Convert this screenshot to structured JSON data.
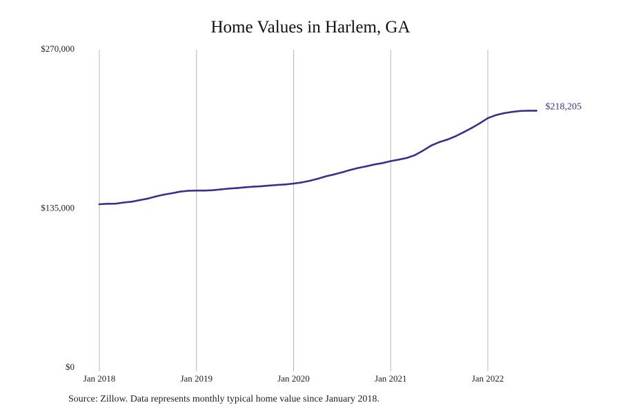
{
  "title": "Home Values in Harlem, GA",
  "source": "Source: Zillow. Data represents monthly typical home value since January 2018.",
  "colors": {
    "line": "#3a2f8a",
    "grid": "#b5b5b5",
    "text": "#222222"
  },
  "chart_data": {
    "type": "line",
    "title": "Home Values in Harlem, GA",
    "xlabel": "",
    "ylabel": "",
    "grid": "vertical",
    "legend": "none",
    "ylim": [
      0,
      270000
    ],
    "y_ticks": [
      {
        "value": 0,
        "label": "$0"
      },
      {
        "value": 135000,
        "label": "$135,000"
      },
      {
        "value": 270000,
        "label": "$270,000"
      }
    ],
    "x_ticks": [
      {
        "value": "2018-01",
        "label": "Jan 2018"
      },
      {
        "value": "2019-01",
        "label": "Jan 2019"
      },
      {
        "value": "2020-01",
        "label": "Jan 2020"
      },
      {
        "value": "2021-01",
        "label": "Jan 2021"
      },
      {
        "value": "2022-01",
        "label": "Jan 2022"
      }
    ],
    "end_label": "$218,205",
    "series": [
      {
        "x": [
          "2018-01",
          "2018-02",
          "2018-03",
          "2018-04",
          "2018-05",
          "2018-06",
          "2018-07",
          "2018-08",
          "2018-09",
          "2018-10",
          "2018-11",
          "2018-12",
          "2019-01",
          "2019-02",
          "2019-03",
          "2019-04",
          "2019-05",
          "2019-06",
          "2019-07",
          "2019-08",
          "2019-09",
          "2019-10",
          "2019-11",
          "2019-12",
          "2020-01",
          "2020-02",
          "2020-03",
          "2020-04",
          "2020-05",
          "2020-06",
          "2020-07",
          "2020-08",
          "2020-09",
          "2020-10",
          "2020-11",
          "2020-12",
          "2021-01",
          "2021-02",
          "2021-03",
          "2021-04",
          "2021-05",
          "2021-06",
          "2021-07",
          "2021-08",
          "2021-09",
          "2021-10",
          "2021-11",
          "2021-12",
          "2022-01",
          "2022-02",
          "2022-03",
          "2022-04",
          "2022-05",
          "2022-06",
          "2022-07"
        ],
        "values": [
          138800,
          139200,
          139300,
          140300,
          141000,
          142300,
          143600,
          145500,
          147000,
          148200,
          149500,
          150200,
          150400,
          150400,
          150700,
          151400,
          152100,
          152500,
          153200,
          153700,
          154100,
          154700,
          155200,
          155600,
          156400,
          157300,
          158700,
          160500,
          162500,
          164100,
          165900,
          167900,
          169600,
          171000,
          172600,
          173800,
          175400,
          176700,
          178100,
          180500,
          184400,
          188600,
          191500,
          193700,
          196500,
          199900,
          203500,
          207500,
          211900,
          214500,
          216100,
          217200,
          218000,
          218205,
          218205
        ]
      }
    ]
  }
}
